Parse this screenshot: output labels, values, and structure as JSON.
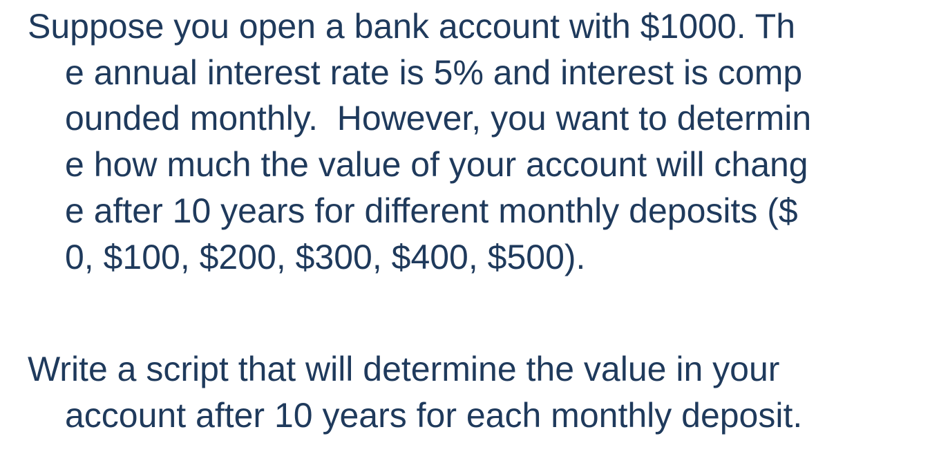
{
  "paragraphs": [
    {
      "lines": [
        "Suppose you open a bank account with $1000. Th",
        "e annual interest rate is 5% and interest is comp",
        "ounded monthly.  However, you want to determin",
        "e how much the value of your account will chang",
        "e after 10 years for different monthly deposits ($",
        "0, $100, $200, $300, $400, $500)."
      ]
    },
    {
      "lines": [
        "Write a script that will determine the value in your",
        "account after 10 years for each monthly deposit."
      ]
    }
  ],
  "colors": {
    "text": "#1f3a5c",
    "background": "#ffffff"
  }
}
